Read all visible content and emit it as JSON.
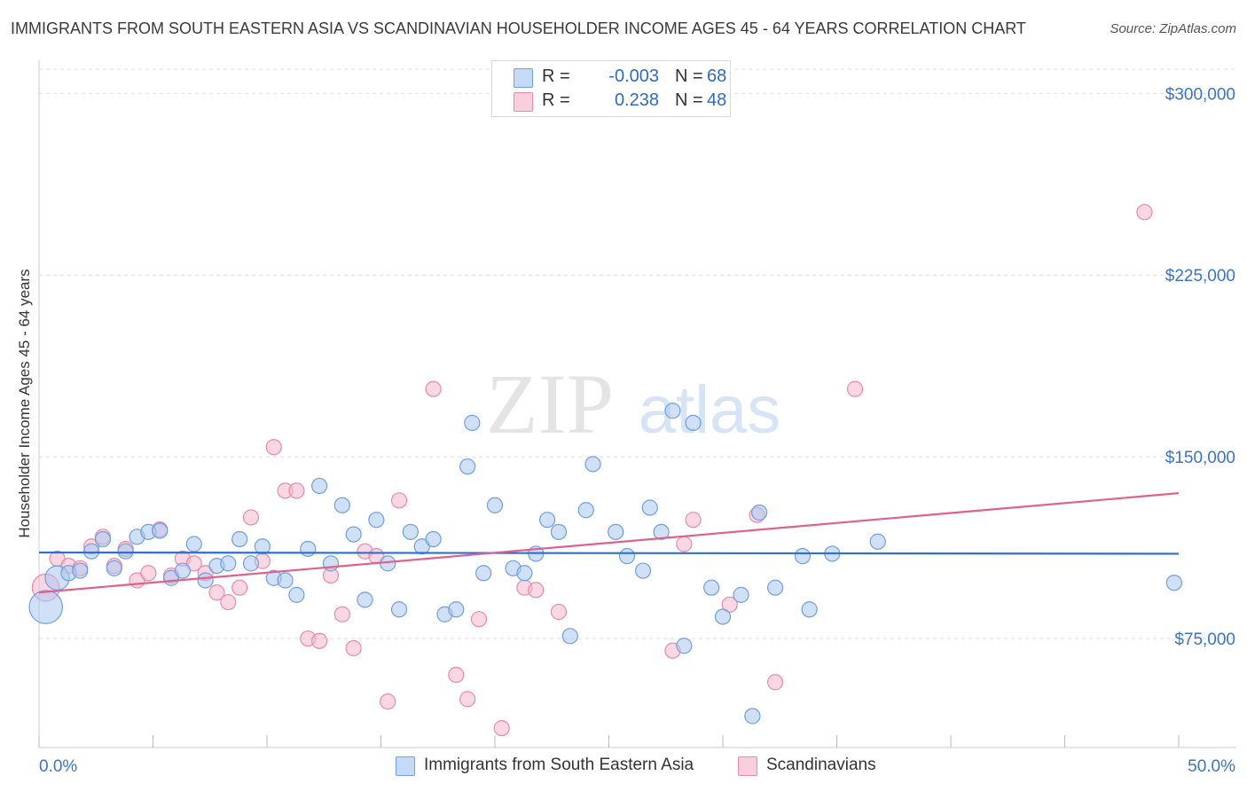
{
  "title": "IMMIGRANTS FROM SOUTH EASTERN ASIA VS SCANDINAVIAN HOUSEHOLDER INCOME AGES 45 - 64 YEARS CORRELATION CHART",
  "source": "Source: ZipAtlas.com",
  "watermark": {
    "zip": "ZIP",
    "atlas": "atlas"
  },
  "legend_top": {
    "rows": [
      {
        "r_label": "R =",
        "r_value": "-0.003",
        "n_label": "N =",
        "n_value": "68"
      },
      {
        "r_label": "R =",
        "r_value": "0.238",
        "n_label": "N =",
        "n_value": "48"
      }
    ]
  },
  "colors": {
    "blue_fill": "#aac8f0",
    "blue_stroke": "#6f9fe0",
    "blue_line": "#2e6fd0",
    "pink_fill": "#f5b8cc",
    "pink_stroke": "#e98aaa",
    "pink_line": "#e0608e",
    "tick_label": "#3a74c9",
    "grid": "#dcdcdc"
  },
  "chart_data": {
    "type": "scatter",
    "title": "IMMIGRANTS FROM SOUTH EASTERN ASIA VS SCANDINAVIAN HOUSEHOLDER INCOME AGES 45 - 64 YEARS CORRELATION CHART",
    "xlabel": "",
    "ylabel": "Householder Income Ages 45 - 64 years",
    "xlim": [
      0,
      50
    ],
    "ylim": [
      30000,
      310000
    ],
    "x_tick_labels": [
      "0.0%",
      "50.0%"
    ],
    "y_ticks": [
      75000,
      150000,
      225000,
      300000
    ],
    "y_tick_labels": [
      "$75,000",
      "$150,000",
      "$225,000",
      "$300,000"
    ],
    "grid": true,
    "legend_placement": "bottom-center",
    "series": [
      {
        "name": "Immigrants from South Eastern Asia",
        "color": "#aac8f0",
        "trend": {
          "x": [
            0,
            50
          ],
          "y": [
            110500,
            110000
          ]
        },
        "points": [
          {
            "x": 0.3,
            "y": 88000,
            "s": 2.2
          },
          {
            "x": 0.8,
            "y": 100000,
            "s": 1.6
          },
          {
            "x": 1.3,
            "y": 102000
          },
          {
            "x": 1.8,
            "y": 103000
          },
          {
            "x": 2.3,
            "y": 111000
          },
          {
            "x": 2.8,
            "y": 116000
          },
          {
            "x": 3.3,
            "y": 104000
          },
          {
            "x": 3.8,
            "y": 111000
          },
          {
            "x": 4.3,
            "y": 117000
          },
          {
            "x": 4.8,
            "y": 119000
          },
          {
            "x": 5.3,
            "y": 119500
          },
          {
            "x": 5.8,
            "y": 100000
          },
          {
            "x": 6.3,
            "y": 103000
          },
          {
            "x": 6.8,
            "y": 114000
          },
          {
            "x": 7.3,
            "y": 99000
          },
          {
            "x": 7.8,
            "y": 105000
          },
          {
            "x": 8.3,
            "y": 106000
          },
          {
            "x": 8.8,
            "y": 116000
          },
          {
            "x": 9.3,
            "y": 106000
          },
          {
            "x": 9.8,
            "y": 113000
          },
          {
            "x": 10.3,
            "y": 100000
          },
          {
            "x": 10.8,
            "y": 99000
          },
          {
            "x": 11.3,
            "y": 93000
          },
          {
            "x": 11.8,
            "y": 112000
          },
          {
            "x": 12.3,
            "y": 138000
          },
          {
            "x": 12.8,
            "y": 106000
          },
          {
            "x": 13.3,
            "y": 130000
          },
          {
            "x": 13.8,
            "y": 118000
          },
          {
            "x": 14.3,
            "y": 91000
          },
          {
            "x": 14.8,
            "y": 124000
          },
          {
            "x": 15.3,
            "y": 106000
          },
          {
            "x": 15.8,
            "y": 87000
          },
          {
            "x": 16.3,
            "y": 119000
          },
          {
            "x": 16.8,
            "y": 113000
          },
          {
            "x": 17.3,
            "y": 116000
          },
          {
            "x": 17.8,
            "y": 85000
          },
          {
            "x": 18.3,
            "y": 87000
          },
          {
            "x": 18.8,
            "y": 146000
          },
          {
            "x": 19.0,
            "y": 164000
          },
          {
            "x": 19.5,
            "y": 102000
          },
          {
            "x": 20.0,
            "y": 130000
          },
          {
            "x": 20.8,
            "y": 104000
          },
          {
            "x": 21.3,
            "y": 102000
          },
          {
            "x": 21.8,
            "y": 110000
          },
          {
            "x": 22.3,
            "y": 124000
          },
          {
            "x": 22.8,
            "y": 119000
          },
          {
            "x": 23.3,
            "y": 76000
          },
          {
            "x": 24.0,
            "y": 128000
          },
          {
            "x": 24.3,
            "y": 147000
          },
          {
            "x": 25.3,
            "y": 119000
          },
          {
            "x": 25.8,
            "y": 109000
          },
          {
            "x": 26.5,
            "y": 103000
          },
          {
            "x": 26.8,
            "y": 129000
          },
          {
            "x": 27.3,
            "y": 119000
          },
          {
            "x": 27.8,
            "y": 169000
          },
          {
            "x": 28.3,
            "y": 72000
          },
          {
            "x": 28.7,
            "y": 164000
          },
          {
            "x": 29.5,
            "y": 96000
          },
          {
            "x": 30.0,
            "y": 84000
          },
          {
            "x": 30.8,
            "y": 93000
          },
          {
            "x": 31.3,
            "y": 43000
          },
          {
            "x": 31.6,
            "y": 127000
          },
          {
            "x": 32.3,
            "y": 96000
          },
          {
            "x": 33.5,
            "y": 109000
          },
          {
            "x": 33.8,
            "y": 87000
          },
          {
            "x": 34.8,
            "y": 110000
          },
          {
            "x": 36.8,
            "y": 115000
          },
          {
            "x": 49.8,
            "y": 98000
          }
        ]
      },
      {
        "name": "Scandinavians",
        "color": "#f5b8cc",
        "trend": {
          "x": [
            0,
            50
          ],
          "y": [
            94000,
            135000
          ]
        },
        "points": [
          {
            "x": 0.3,
            "y": 96000,
            "s": 1.8
          },
          {
            "x": 0.8,
            "y": 108000
          },
          {
            "x": 1.3,
            "y": 105000
          },
          {
            "x": 1.8,
            "y": 104000
          },
          {
            "x": 2.3,
            "y": 113000
          },
          {
            "x": 2.8,
            "y": 117000
          },
          {
            "x": 3.3,
            "y": 105000
          },
          {
            "x": 3.8,
            "y": 112000
          },
          {
            "x": 4.3,
            "y": 99000
          },
          {
            "x": 4.8,
            "y": 102000
          },
          {
            "x": 5.3,
            "y": 120000
          },
          {
            "x": 5.8,
            "y": 101000
          },
          {
            "x": 6.3,
            "y": 108000
          },
          {
            "x": 6.8,
            "y": 106000
          },
          {
            "x": 7.3,
            "y": 102000
          },
          {
            "x": 7.8,
            "y": 94000
          },
          {
            "x": 8.3,
            "y": 90000
          },
          {
            "x": 8.8,
            "y": 96000
          },
          {
            "x": 9.3,
            "y": 125000
          },
          {
            "x": 9.8,
            "y": 107000
          },
          {
            "x": 10.3,
            "y": 154000
          },
          {
            "x": 10.8,
            "y": 136000
          },
          {
            "x": 11.3,
            "y": 136000
          },
          {
            "x": 11.8,
            "y": 75000
          },
          {
            "x": 12.3,
            "y": 74000
          },
          {
            "x": 12.8,
            "y": 101000
          },
          {
            "x": 13.3,
            "y": 85000
          },
          {
            "x": 13.8,
            "y": 71000
          },
          {
            "x": 14.3,
            "y": 111000
          },
          {
            "x": 14.8,
            "y": 109000
          },
          {
            "x": 15.3,
            "y": 49000
          },
          {
            "x": 15.8,
            "y": 132000
          },
          {
            "x": 17.3,
            "y": 178000
          },
          {
            "x": 18.3,
            "y": 60000
          },
          {
            "x": 18.8,
            "y": 50000
          },
          {
            "x": 19.3,
            "y": 83000
          },
          {
            "x": 20.3,
            "y": 38000
          },
          {
            "x": 21.3,
            "y": 96000
          },
          {
            "x": 21.8,
            "y": 95000
          },
          {
            "x": 22.8,
            "y": 86000
          },
          {
            "x": 27.8,
            "y": 70000
          },
          {
            "x": 28.3,
            "y": 114000
          },
          {
            "x": 28.7,
            "y": 124000
          },
          {
            "x": 30.3,
            "y": 89000
          },
          {
            "x": 31.5,
            "y": 126000
          },
          {
            "x": 32.3,
            "y": 57000
          },
          {
            "x": 35.8,
            "y": 178000
          },
          {
            "x": 48.5,
            "y": 251000
          }
        ]
      }
    ]
  }
}
